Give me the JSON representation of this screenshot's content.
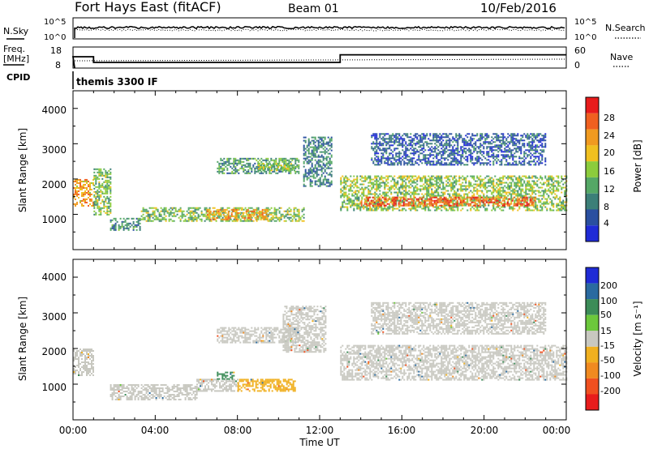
{
  "header": {
    "station": "Fort Hays East (fitACF)",
    "beam": "Beam 01",
    "date": "10/Feb/2016"
  },
  "noise_panel": {
    "left_label": "N.Sky",
    "right_label": "N.Search",
    "left_ticks": [
      "10^5",
      "10^0"
    ],
    "right_ticks": [
      "10^5",
      "10^0"
    ]
  },
  "freq_panel": {
    "left_label_1": "Freq.",
    "left_label_2": "[MHz]",
    "right_label": "Nave",
    "left_ticks": [
      "18",
      "8"
    ],
    "right_ticks": [
      "60",
      "0"
    ]
  },
  "cpid": {
    "label": "CPID",
    "value": "themis 3300 IF"
  },
  "x_axis": {
    "label": "Time UT",
    "ticks": [
      "00:00",
      "04:00",
      "08:00",
      "12:00",
      "16:00",
      "20:00",
      "00:00"
    ]
  },
  "power_panel": {
    "ylabel": "Slant Range [km]",
    "y_ticks": [
      "1000",
      "2000",
      "3000",
      "4000"
    ],
    "colorbar_label": "Power [dB]",
    "colorbar_ticks": [
      "4",
      "8",
      "12",
      "16",
      "20",
      "24",
      "28"
    ],
    "colors": [
      "#1f2bd6",
      "#2a4fa0",
      "#3c7f78",
      "#55a866",
      "#8ccc3c",
      "#f0c020",
      "#f09a20",
      "#f06020",
      "#e81c1c"
    ]
  },
  "velocity_panel": {
    "ylabel": "Slant Range [km]",
    "y_ticks": [
      "1000",
      "2000",
      "3000",
      "4000"
    ],
    "colorbar_label": "Velocity [m s⁻¹]",
    "colorbar_ticks": [
      "200",
      "100",
      "50",
      "15",
      "-15",
      "-50",
      "-100",
      "-200"
    ],
    "colors": [
      "#1f2bd6",
      "#2a6aa0",
      "#3c8c58",
      "#6cc83c",
      "#c8c8c0",
      "#f0b020",
      "#f08a20",
      "#f05020",
      "#e81c1c"
    ]
  },
  "chart_data": {
    "type": "heatmap",
    "x_unit": "hours UT",
    "xlim": [
      0,
      24
    ],
    "ylim": [
      0,
      4500
    ],
    "power_regions": [
      {
        "t0": 0.0,
        "t1": 1.0,
        "r0": 1250,
        "r1": 2000,
        "level": 22
      },
      {
        "t0": 1.0,
        "t1": 1.8,
        "r0": 1000,
        "r1": 2300,
        "level": 14
      },
      {
        "t0": 1.8,
        "t1": 3.3,
        "r0": 550,
        "r1": 900,
        "level": 10
      },
      {
        "t0": 3.3,
        "t1": 11.2,
        "r0": 800,
        "r1": 1200,
        "level": 14
      },
      {
        "t0": 6.5,
        "t1": 9.5,
        "r0": 850,
        "r1": 1150,
        "level": 22
      },
      {
        "t0": 7.0,
        "t1": 11.0,
        "r0": 2150,
        "r1": 2600,
        "level": 11
      },
      {
        "t0": 9.0,
        "t1": 10.8,
        "r0": 2250,
        "r1": 2450,
        "level": 15
      },
      {
        "t0": 11.2,
        "t1": 12.6,
        "r0": 1800,
        "r1": 3200,
        "level": 9
      },
      {
        "t0": 13.0,
        "t1": 24.0,
        "r0": 1100,
        "r1": 2100,
        "level": 15
      },
      {
        "t0": 14.0,
        "t1": 22.5,
        "r0": 1250,
        "r1": 1500,
        "level": 26
      },
      {
        "t0": 14.5,
        "t1": 23.0,
        "r0": 2400,
        "r1": 3300,
        "level": 6
      }
    ],
    "velocity_regions": [
      {
        "t0": 0.0,
        "t1": 1.0,
        "r0": 1250,
        "r1": 2000,
        "level": 0
      },
      {
        "t0": 1.8,
        "t1": 6.0,
        "r0": 550,
        "r1": 1000,
        "level": 0
      },
      {
        "t0": 6.0,
        "t1": 8.0,
        "r0": 800,
        "r1": 1150,
        "level": 0
      },
      {
        "t0": 8.0,
        "t1": 10.8,
        "r0": 800,
        "r1": 1150,
        "level": -30
      },
      {
        "t0": 7.0,
        "t1": 7.8,
        "r0": 1150,
        "r1": 1350,
        "level": 60
      },
      {
        "t0": 7.0,
        "t1": 11.0,
        "r0": 2150,
        "r1": 2600,
        "level": 0
      },
      {
        "t0": 10.2,
        "t1": 12.3,
        "r0": 1900,
        "r1": 3200,
        "level": 0
      },
      {
        "t0": 13.0,
        "t1": 24.0,
        "r0": 1100,
        "r1": 2100,
        "level": 0
      },
      {
        "t0": 14.5,
        "t1": 23.0,
        "r0": 2400,
        "r1": 3300,
        "level": 0
      }
    ],
    "frequency_mhz": [
      {
        "t0": 0.0,
        "t1": 1.0,
        "value": 14
      },
      {
        "t0": 1.0,
        "t1": 13.0,
        "value": 11
      },
      {
        "t0": 13.0,
        "t1": 24.0,
        "value": 15
      }
    ]
  }
}
